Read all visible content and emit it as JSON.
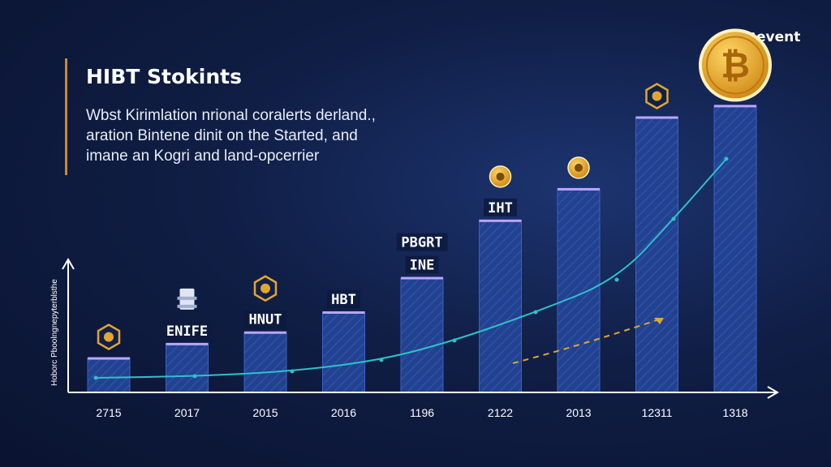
{
  "brand": {
    "logo_text": "event",
    "logo_mark": "5"
  },
  "chart_data": {
    "type": "bar",
    "title": "HIBT Stokints",
    "subtitle_lines": [
      "Wbst Kirimlation nrional coralerts derland.,",
      "aration Bintene dinit on the Started, and",
      "imane an Kogri and land-opcerrier"
    ],
    "ylabel": "Hoborc Pboolngnepyterblsthe",
    "xlabel": "",
    "categories": [
      "2715",
      "2017",
      "2015",
      "2016",
      "1196",
      "2122",
      "2013",
      "12311",
      "1318"
    ],
    "values": [
      12,
      17,
      21,
      28,
      40,
      60,
      71,
      96,
      100
    ],
    "bar_labels": [
      "",
      "ENIFE",
      "HNUT",
      "HBT",
      "PBGRT / INE",
      "IHT",
      "",
      "",
      ""
    ],
    "ylim": [
      0,
      110
    ],
    "grid": false,
    "colors": {
      "bar": "#22418f",
      "bar_edge": "#3a62c4",
      "line": "#2fc1c9",
      "accent": "#e0a630",
      "coin": "#f2b22e"
    },
    "icons": [
      "hexagon-coin-icon",
      "lighthouse-icon",
      "shield-coin-icon",
      "",
      "",
      "coin-icon",
      "coin-icon",
      "shield-coin-icon",
      "bitcoin-icon"
    ]
  }
}
